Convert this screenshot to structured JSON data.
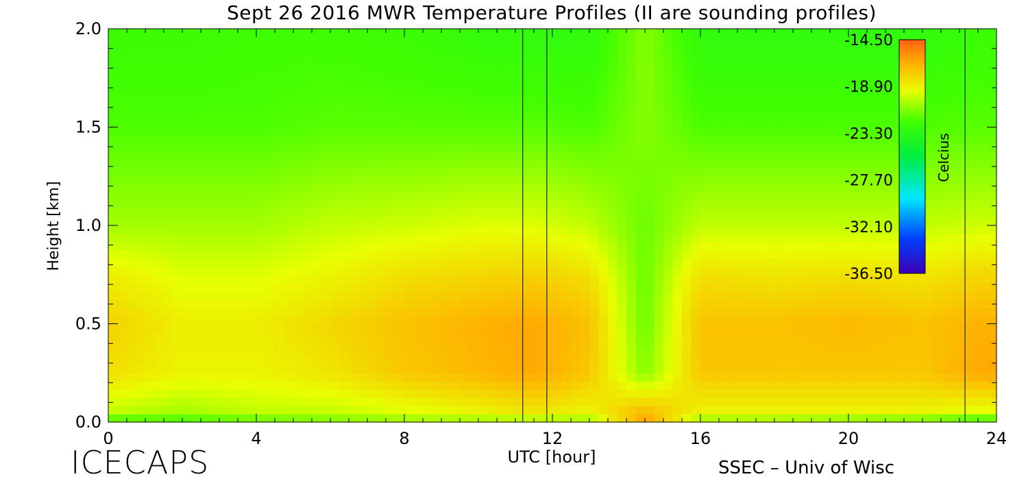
{
  "chart_data": {
    "type": "heatmap",
    "title": "Sept 26 2016 MWR Temperature Profiles (II are sounding profiles)",
    "xlabel": "UTC [hour]",
    "ylabel": "Height [km]",
    "xlim": [
      0,
      24
    ],
    "ylim": [
      0,
      2
    ],
    "x_ticks": [
      "0",
      "4",
      "8",
      "12",
      "16",
      "20",
      "24"
    ],
    "y_ticks": [
      "0.0",
      "0.5",
      "1.0",
      "1.5",
      "2.0"
    ],
    "sounding_times_utc": [
      11.2,
      11.85,
      23.15
    ],
    "colorbar": {
      "label": "Celcius",
      "ticks": [
        "-14.50",
        "-18.90",
        "-23.30",
        "-27.70",
        "-32.10",
        "-36.50"
      ],
      "min": -36.5,
      "max": -14.5
    },
    "height_km": [
      0.0,
      0.05,
      0.25,
      0.5,
      0.75,
      1.0,
      1.5,
      2.0
    ],
    "time_utc": [
      0,
      2,
      4,
      6,
      8,
      10,
      11.5,
      13,
      14.5,
      16,
      18,
      20,
      22,
      23.5,
      24
    ],
    "temperature_c": [
      [
        -22.5,
        -22.5,
        -22.0,
        -21.5,
        -21.0,
        -21.0,
        -21.0,
        -21.0,
        -16.0,
        -21.0,
        -21.0,
        -21.5,
        -22.0,
        -23.0,
        -22.5
      ],
      [
        -20.0,
        -20.5,
        -20.0,
        -20.0,
        -19.5,
        -19.0,
        -18.5,
        -19.0,
        -17.0,
        -19.0,
        -19.0,
        -19.0,
        -19.0,
        -19.5,
        -19.5
      ],
      [
        -18.3,
        -19.0,
        -19.0,
        -18.5,
        -17.5,
        -17.0,
        -16.5,
        -17.5,
        -21.0,
        -17.5,
        -17.5,
        -17.5,
        -17.5,
        -16.5,
        -16.5
      ],
      [
        -17.8,
        -18.8,
        -18.8,
        -18.0,
        -17.3,
        -16.8,
        -16.5,
        -17.3,
        -21.5,
        -17.3,
        -17.3,
        -17.0,
        -17.3,
        -16.8,
        -16.8
      ],
      [
        -18.8,
        -19.5,
        -19.5,
        -19.0,
        -18.3,
        -18.0,
        -17.8,
        -18.3,
        -21.5,
        -18.3,
        -18.5,
        -18.3,
        -18.5,
        -18.0,
        -18.0
      ],
      [
        -20.5,
        -20.5,
        -20.5,
        -20.0,
        -19.8,
        -19.5,
        -19.5,
        -20.0,
        -21.5,
        -20.0,
        -20.0,
        -20.0,
        -20.0,
        -19.8,
        -19.8
      ],
      [
        -22.0,
        -22.0,
        -22.0,
        -21.8,
        -21.8,
        -21.8,
        -21.8,
        -22.0,
        -21.0,
        -22.0,
        -22.0,
        -22.0,
        -22.0,
        -21.8,
        -21.8
      ],
      [
        -22.5,
        -22.5,
        -22.3,
        -22.3,
        -22.5,
        -22.8,
        -23.0,
        -23.0,
        -21.0,
        -23.0,
        -23.0,
        -23.0,
        -23.0,
        -22.5,
        -22.5
      ]
    ]
  }
}
